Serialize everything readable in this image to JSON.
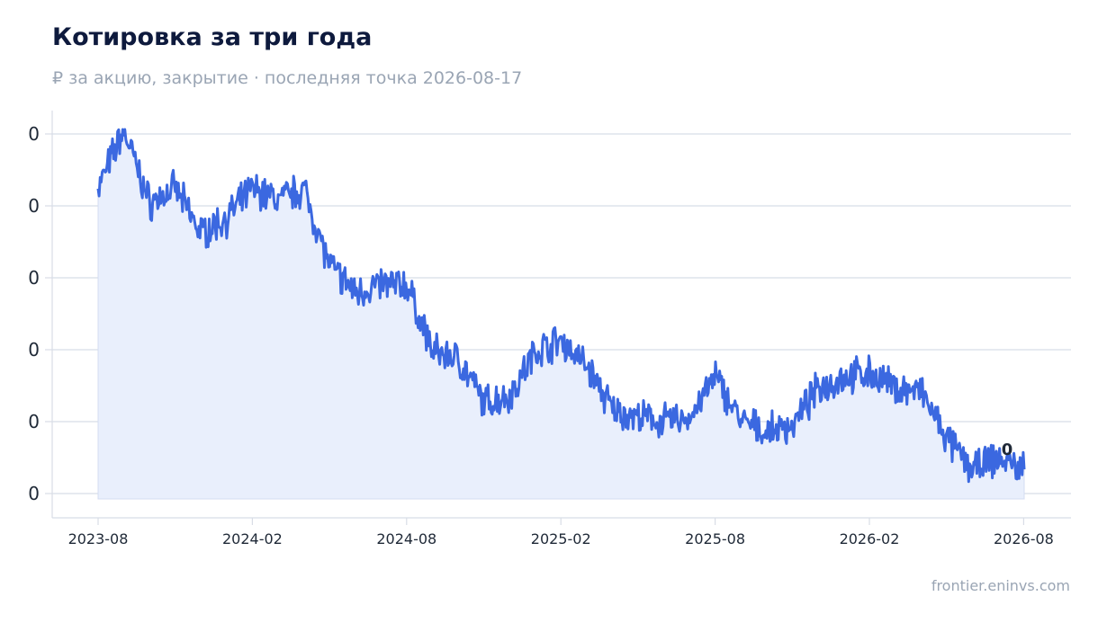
{
  "chart_data": {
    "type": "area",
    "title": "Котировка за три года",
    "subtitle": "₽ за акцию, закрытие · последняя точка 2026-08-17",
    "source": "frontier.eninvs.com",
    "y_tick_labels": [
      "0",
      "0",
      "0",
      "0",
      "0",
      "0"
    ],
    "x_tick_labels": [
      "2023-08",
      "2024-02",
      "2024-08",
      "2025-02",
      "2025-08",
      "2026-02",
      "2026-08"
    ],
    "last_point_label": "0",
    "line_color": "#3b68e0",
    "fill_color": "#e9effc",
    "grid": true,
    "legend": "none",
    "series": [
      {
        "x": [
          "2023-08",
          "2023-09",
          "2023-10",
          "2023-11",
          "2023-12",
          "2024-01",
          "2024-02",
          "2024-03",
          "2024-04",
          "2024-05",
          "2024-06",
          "2024-07",
          "2024-08",
          "2024-09",
          "2024-10",
          "2024-11",
          "2024-12",
          "2025-01",
          "2025-02",
          "2025-03",
          "2025-04",
          "2025-05",
          "2025-06",
          "2025-07",
          "2025-08",
          "2025-09",
          "2025-10",
          "2025-11",
          "2025-12",
          "2026-01",
          "2026-02",
          "2026-03",
          "2026-04",
          "2026-05",
          "2026-06",
          "2026-07",
          "2026-08"
        ],
        "values": [
          0.84,
          1.0,
          0.8,
          0.84,
          0.72,
          0.76,
          0.84,
          0.81,
          0.84,
          0.63,
          0.56,
          0.58,
          0.58,
          0.4,
          0.38,
          0.26,
          0.28,
          0.4,
          0.43,
          0.36,
          0.24,
          0.22,
          0.21,
          0.22,
          0.33,
          0.21,
          0.18,
          0.2,
          0.3,
          0.33,
          0.34,
          0.3,
          0.29,
          0.16,
          0.08,
          0.11,
          0.08
        ]
      }
    ]
  }
}
